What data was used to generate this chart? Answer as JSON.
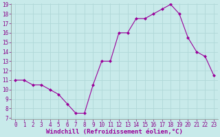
{
  "x": [
    0,
    1,
    2,
    3,
    4,
    5,
    6,
    7,
    8,
    9,
    10,
    11,
    12,
    13,
    14,
    15,
    16,
    17,
    18,
    19,
    20,
    21,
    22,
    23
  ],
  "y": [
    11,
    11,
    10.5,
    10.5,
    10,
    9.5,
    8.5,
    7.5,
    7.5,
    10.5,
    13,
    13,
    16,
    16,
    17.5,
    17.5,
    18,
    18.5,
    19,
    18,
    15.5,
    14,
    13.5,
    11.5
  ],
  "line_color": "#990099",
  "marker_color": "#990099",
  "bg_color": "#c8eaea",
  "grid_color": "#b0d8d8",
  "xlabel": "Windchill (Refroidissement éolien,°C)",
  "xlabel_color": "#990099",
  "ylim": [
    7,
    19
  ],
  "xlim": [
    -0.5,
    23.5
  ],
  "yticks": [
    7,
    8,
    9,
    10,
    11,
    12,
    13,
    14,
    15,
    16,
    17,
    18,
    19
  ],
  "xticks": [
    0,
    1,
    2,
    3,
    4,
    5,
    6,
    7,
    8,
    9,
    10,
    11,
    12,
    13,
    14,
    15,
    16,
    17,
    18,
    19,
    20,
    21,
    22,
    23
  ],
  "tick_fontsize": 5.5,
  "xlabel_fontsize": 6.5
}
